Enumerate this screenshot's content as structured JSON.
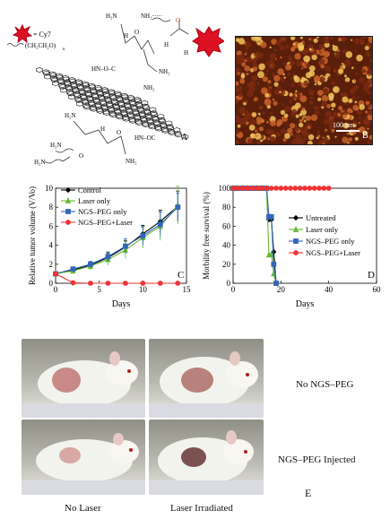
{
  "panel_A": {
    "legend_cy7": "= Cy7",
    "legend_peg": "(CH₂CH₂O)",
    "peg_subscript": "n",
    "groups": {
      "nh2": "NH₂",
      "h2n": "H₂N",
      "o": "O",
      "h": "H",
      "hn": "HN",
      "nh2_dots": "NH₂·····",
      "hno_c": "HN–O–C",
      "hn_oc": "HN–OC",
      "c": "C",
      "n_h": "H",
      "label": "A"
    }
  },
  "panel_B": {
    "scale": "100 nm",
    "label": "B"
  },
  "photos": {
    "row1_label": "No NGS–PEG",
    "row2_label": "NGS–PEG Injected",
    "col1_label": "No Laser",
    "col2_label": "Laser Irradiated",
    "label": "E"
  },
  "chart_data": [
    {
      "type": "line",
      "panel": "C",
      "xlabel": "Days",
      "ylabel": "Relative tumor volume (V/Vo)",
      "xlim": [
        0,
        15
      ],
      "ylim": [
        0,
        10
      ],
      "xticks": [
        0,
        5,
        10,
        15
      ],
      "yticks": [
        0,
        2,
        4,
        6,
        8,
        10
      ],
      "legend_position": "top-left",
      "series": [
        {
          "name": "Control",
          "color": "#000000",
          "marker": "diamond",
          "x": [
            0,
            2,
            4,
            6,
            8,
            10,
            12,
            14
          ],
          "y": [
            1.0,
            1.4,
            1.9,
            2.7,
            3.8,
            5.2,
            6.5,
            8.1
          ],
          "err": [
            0.1,
            0.2,
            0.3,
            0.5,
            0.7,
            0.9,
            1.2,
            1.6
          ]
        },
        {
          "name": "Laser only",
          "color": "#66bb33",
          "marker": "triangle",
          "x": [
            0,
            2,
            4,
            6,
            8,
            10,
            12,
            14
          ],
          "y": [
            1.0,
            1.3,
            1.8,
            2.5,
            3.5,
            4.8,
            6.0,
            8.2
          ],
          "err": [
            0.1,
            0.3,
            0.4,
            0.6,
            0.9,
            1.1,
            1.5,
            2.0
          ]
        },
        {
          "name": "NGS–PEG only",
          "color": "#3366bb",
          "marker": "square",
          "x": [
            0,
            2,
            4,
            6,
            8,
            10,
            12,
            14
          ],
          "y": [
            1.0,
            1.5,
            2.0,
            2.8,
            3.9,
            5.0,
            6.2,
            8.0
          ],
          "err": [
            0.1,
            0.2,
            0.3,
            0.5,
            0.8,
            1.0,
            1.3,
            1.5
          ]
        },
        {
          "name": "NGS–PEG+Laser",
          "color": "#ee3333",
          "marker": "circle",
          "x": [
            0,
            2,
            4,
            6,
            8,
            10,
            12,
            14
          ],
          "y": [
            1.0,
            0.05,
            0.0,
            0.0,
            0.0,
            0.0,
            0.0,
            0.0
          ],
          "err": [
            0,
            0,
            0,
            0,
            0,
            0,
            0,
            0
          ]
        }
      ]
    },
    {
      "type": "line",
      "panel": "D",
      "xlabel": "Days",
      "ylabel": "Morbility free survival (%)",
      "xlim": [
        0,
        60
      ],
      "ylim": [
        0,
        100
      ],
      "xticks": [
        0,
        20,
        40,
        60
      ],
      "yticks": [
        0,
        20,
        40,
        60,
        80,
        100
      ],
      "legend_position": "center-right",
      "series": [
        {
          "name": "Untreated",
          "color": "#000000",
          "marker": "diamond",
          "x": [
            0,
            2,
            4,
            6,
            8,
            10,
            12,
            14,
            15,
            16,
            17,
            18
          ],
          "y": [
            100,
            100,
            100,
            100,
            100,
            100,
            100,
            100,
            67,
            67,
            33,
            0
          ]
        },
        {
          "name": "Laser only",
          "color": "#66bb33",
          "marker": "triangle",
          "x": [
            0,
            2,
            4,
            6,
            8,
            10,
            12,
            14,
            15,
            16,
            17,
            18
          ],
          "y": [
            100,
            100,
            100,
            100,
            100,
            100,
            100,
            100,
            30,
            30,
            10,
            0
          ]
        },
        {
          "name": "NGS–PEG only",
          "color": "#3366bb",
          "marker": "square",
          "x": [
            0,
            2,
            4,
            6,
            8,
            10,
            12,
            14,
            15,
            16,
            17,
            18
          ],
          "y": [
            100,
            100,
            100,
            100,
            100,
            100,
            100,
            100,
            70,
            70,
            20,
            0
          ]
        },
        {
          "name": "NGS–PEG+Laser",
          "color": "#ee3333",
          "marker": "circle",
          "x": [
            0,
            2,
            4,
            6,
            8,
            10,
            12,
            14,
            16,
            18,
            20,
            22,
            24,
            26,
            28,
            30,
            32,
            34,
            36,
            38,
            40
          ],
          "y": [
            100,
            100,
            100,
            100,
            100,
            100,
            100,
            100,
            100,
            100,
            100,
            100,
            100,
            100,
            100,
            100,
            100,
            100,
            100,
            100,
            100
          ]
        }
      ]
    }
  ]
}
